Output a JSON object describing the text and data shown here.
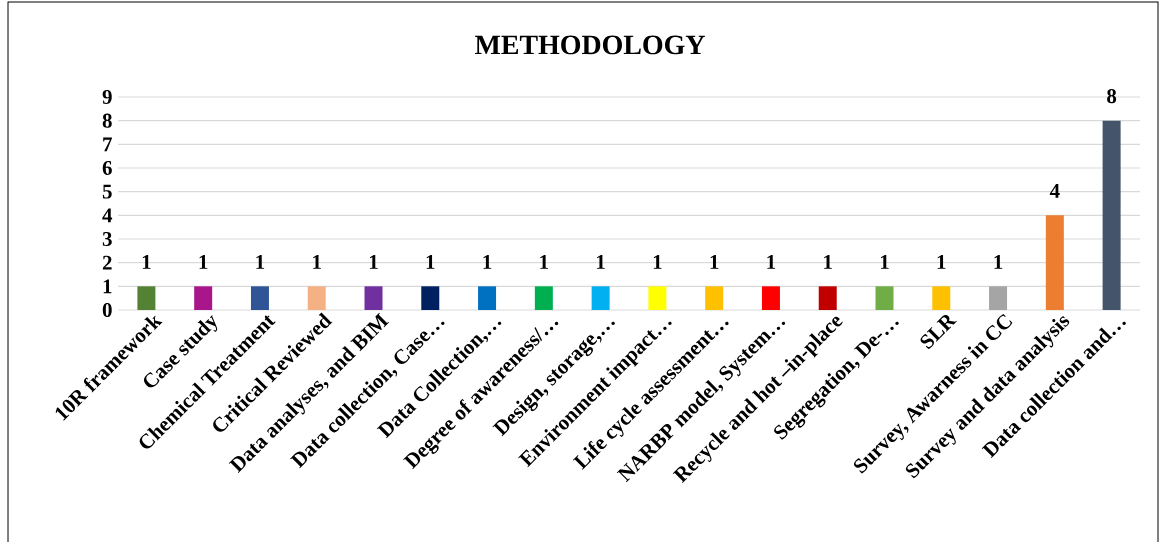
{
  "chart_data": {
    "type": "bar",
    "title": "METHODOLOGY",
    "categories": [
      "10R framework",
      "Case study",
      "Chemical Treatment",
      "Critical Reviewed",
      "Data analyses, and BIM",
      "Data collection, Case…",
      "Data Collection,…",
      "Degree of awareness/…",
      "Design, storage,…",
      "Environment impact…",
      "Life cycle assessment…",
      "NARBP model, System…",
      "Recycle and hot –in-place",
      "Segregation, De-…",
      "SLR",
      "Survey, Awarness in CC",
      "Survey and data analysis",
      "Data collection and…"
    ],
    "values": [
      1,
      1,
      1,
      1,
      1,
      1,
      1,
      1,
      1,
      1,
      1,
      1,
      1,
      1,
      1,
      1,
      4,
      8
    ],
    "colors": [
      "#548235",
      "#a9168c",
      "#2f5597",
      "#f4b183",
      "#7030a0",
      "#002060",
      "#0070c0",
      "#00b050",
      "#00b0f0",
      "#ffff00",
      "#ffc000",
      "#ff0000",
      "#c00000",
      "#70ad47",
      "#ffc000",
      "#a5a5a5",
      "#ed7d31",
      "#44546a"
    ],
    "ylim": [
      0,
      9
    ],
    "yticks": [
      0,
      1,
      2,
      3,
      4,
      5,
      6,
      7,
      8,
      9
    ],
    "grid": "y",
    "data_labels": true
  }
}
